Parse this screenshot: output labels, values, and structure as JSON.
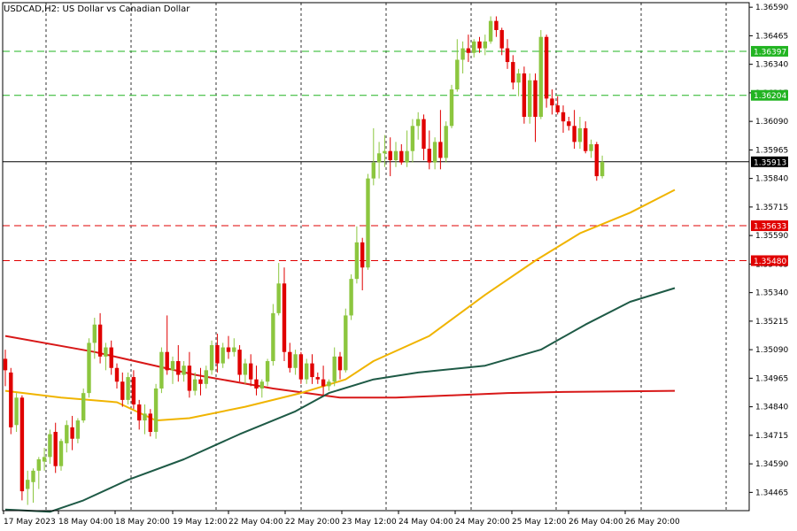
{
  "chart_data": {
    "type": "candlestick",
    "title": "USDCAD,H2:  US Dollar vs Canadian Dollar",
    "symbol": "USDCAD",
    "timeframe": "H2",
    "ylim": [
      1.34385,
      1.3661
    ],
    "y_ticks": [
      "1.36590",
      "1.36465",
      "1.36340",
      "1.36215",
      "1.36090",
      "1.35965",
      "1.35840",
      "1.35715",
      "1.35590",
      "1.35465",
      "1.35340",
      "1.35215",
      "1.35090",
      "1.34965",
      "1.34840",
      "1.34715",
      "1.34590",
      "1.34465"
    ],
    "x_ticks": [
      "17 May 2023",
      "18 May 04:00",
      "18 May 20:00",
      "19 May 12:00",
      "22 May 04:00",
      "22 May 20:00",
      "23 May 12:00",
      "24 May 04:00",
      "24 May 20:00",
      "25 May 12:00",
      "26 May 04:00",
      "26 May 20:00"
    ],
    "grid": true,
    "colors": {
      "bullish": "#8cc63f",
      "bearish": "#e00000",
      "ma_fast": "#f0b400",
      "ma_mid": "#1e5a46",
      "ma_slow": "#d81818",
      "support": "#e00000",
      "resistance": "#22b422",
      "current": "#000000"
    },
    "levels": [
      {
        "value": 1.36397,
        "label": "1.36397",
        "kind": "resistance"
      },
      {
        "value": 1.36204,
        "label": "1.36204",
        "kind": "resistance"
      },
      {
        "value": 1.35913,
        "label": "1.35913",
        "kind": "current"
      },
      {
        "value": 1.35633,
        "label": "1.35633",
        "kind": "support"
      },
      {
        "value": 1.3548,
        "label": "1.35480",
        "kind": "support"
      }
    ],
    "candles": [
      {
        "o": 1.3505,
        "h": 1.3509,
        "l": 1.3493,
        "c": 1.35
      },
      {
        "o": 1.3499,
        "h": 1.3501,
        "l": 1.3472,
        "c": 1.3475
      },
      {
        "o": 1.3476,
        "h": 1.349,
        "l": 1.3473,
        "c": 1.3488
      },
      {
        "o": 1.3488,
        "h": 1.3489,
        "l": 1.3443,
        "c": 1.3447
      },
      {
        "o": 1.3448,
        "h": 1.3456,
        "l": 1.3441,
        "c": 1.3452
      },
      {
        "o": 1.3451,
        "h": 1.3457,
        "l": 1.3442,
        "c": 1.3456
      },
      {
        "o": 1.3456,
        "h": 1.3462,
        "l": 1.3448,
        "c": 1.3461
      },
      {
        "o": 1.346,
        "h": 1.3466,
        "l": 1.3456,
        "c": 1.3462
      },
      {
        "o": 1.3462,
        "h": 1.3474,
        "l": 1.3459,
        "c": 1.3472
      },
      {
        "o": 1.3473,
        "h": 1.3477,
        "l": 1.3455,
        "c": 1.3458
      },
      {
        "o": 1.3458,
        "h": 1.347,
        "l": 1.3456,
        "c": 1.3469
      },
      {
        "o": 1.3468,
        "h": 1.3478,
        "l": 1.3464,
        "c": 1.3476
      },
      {
        "o": 1.3475,
        "h": 1.348,
        "l": 1.3465,
        "c": 1.347
      },
      {
        "o": 1.347,
        "h": 1.3479,
        "l": 1.3468,
        "c": 1.3478
      },
      {
        "o": 1.3478,
        "h": 1.3492,
        "l": 1.3477,
        "c": 1.349
      },
      {
        "o": 1.349,
        "h": 1.3514,
        "l": 1.3488,
        "c": 1.3512
      },
      {
        "o": 1.3512,
        "h": 1.3523,
        "l": 1.3505,
        "c": 1.352
      },
      {
        "o": 1.352,
        "h": 1.3525,
        "l": 1.3503,
        "c": 1.3506
      },
      {
        "o": 1.3506,
        "h": 1.3512,
        "l": 1.35,
        "c": 1.351
      },
      {
        "o": 1.351,
        "h": 1.3513,
        "l": 1.3498,
        "c": 1.3501
      },
      {
        "o": 1.3501,
        "h": 1.3503,
        "l": 1.3492,
        "c": 1.3495
      },
      {
        "o": 1.3495,
        "h": 1.3499,
        "l": 1.3484,
        "c": 1.3487
      },
      {
        "o": 1.3487,
        "h": 1.3499,
        "l": 1.3485,
        "c": 1.3497
      },
      {
        "o": 1.3497,
        "h": 1.35,
        "l": 1.3483,
        "c": 1.3485
      },
      {
        "o": 1.3485,
        "h": 1.3487,
        "l": 1.3474,
        "c": 1.3478
      },
      {
        "o": 1.3478,
        "h": 1.3485,
        "l": 1.3472,
        "c": 1.3481
      },
      {
        "o": 1.3481,
        "h": 1.3483,
        "l": 1.3471,
        "c": 1.3473
      },
      {
        "o": 1.3473,
        "h": 1.3494,
        "l": 1.347,
        "c": 1.3492
      },
      {
        "o": 1.3492,
        "h": 1.351,
        "l": 1.349,
        "c": 1.3508
      },
      {
        "o": 1.3508,
        "h": 1.3524,
        "l": 1.3498,
        "c": 1.35
      },
      {
        "o": 1.35,
        "h": 1.3506,
        "l": 1.3494,
        "c": 1.3504
      },
      {
        "o": 1.3504,
        "h": 1.3511,
        "l": 1.3495,
        "c": 1.3498
      },
      {
        "o": 1.3498,
        "h": 1.3504,
        "l": 1.3495,
        "c": 1.3502
      },
      {
        "o": 1.3502,
        "h": 1.3508,
        "l": 1.3488,
        "c": 1.3491
      },
      {
        "o": 1.3491,
        "h": 1.3499,
        "l": 1.3489,
        "c": 1.3496
      },
      {
        "o": 1.3496,
        "h": 1.3501,
        "l": 1.3489,
        "c": 1.3494
      },
      {
        "o": 1.3494,
        "h": 1.3502,
        "l": 1.3492,
        "c": 1.35
      },
      {
        "o": 1.35,
        "h": 1.3513,
        "l": 1.3498,
        "c": 1.3511
      },
      {
        "o": 1.3511,
        "h": 1.3516,
        "l": 1.3499,
        "c": 1.3503
      },
      {
        "o": 1.3503,
        "h": 1.3512,
        "l": 1.3501,
        "c": 1.351
      },
      {
        "o": 1.351,
        "h": 1.3515,
        "l": 1.3505,
        "c": 1.3508
      },
      {
        "o": 1.3508,
        "h": 1.3514,
        "l": 1.3506,
        "c": 1.351
      },
      {
        "o": 1.3509,
        "h": 1.3511,
        "l": 1.3495,
        "c": 1.3498
      },
      {
        "o": 1.3498,
        "h": 1.3505,
        "l": 1.3494,
        "c": 1.3503
      },
      {
        "o": 1.3503,
        "h": 1.3507,
        "l": 1.3493,
        "c": 1.3496
      },
      {
        "o": 1.3496,
        "h": 1.3502,
        "l": 1.3489,
        "c": 1.3492
      },
      {
        "o": 1.3492,
        "h": 1.3496,
        "l": 1.3488,
        "c": 1.3495
      },
      {
        "o": 1.3495,
        "h": 1.3505,
        "l": 1.3493,
        "c": 1.3504
      },
      {
        "o": 1.3504,
        "h": 1.3529,
        "l": 1.3502,
        "c": 1.3525
      },
      {
        "o": 1.3525,
        "h": 1.3547,
        "l": 1.3524,
        "c": 1.3538
      },
      {
        "o": 1.3538,
        "h": 1.3545,
        "l": 1.3504,
        "c": 1.3508
      },
      {
        "o": 1.3508,
        "h": 1.3512,
        "l": 1.3499,
        "c": 1.3501
      },
      {
        "o": 1.3501,
        "h": 1.3509,
        "l": 1.3498,
        "c": 1.3507
      },
      {
        "o": 1.3507,
        "h": 1.3508,
        "l": 1.3494,
        "c": 1.3496
      },
      {
        "o": 1.3496,
        "h": 1.3505,
        "l": 1.3494,
        "c": 1.3503
      },
      {
        "o": 1.3503,
        "h": 1.3507,
        "l": 1.3494,
        "c": 1.3497
      },
      {
        "o": 1.3497,
        "h": 1.3499,
        "l": 1.3494,
        "c": 1.3496
      },
      {
        "o": 1.3496,
        "h": 1.3502,
        "l": 1.3489,
        "c": 1.3493
      },
      {
        "o": 1.3493,
        "h": 1.3496,
        "l": 1.3491,
        "c": 1.3495
      },
      {
        "o": 1.3495,
        "h": 1.351,
        "l": 1.3493,
        "c": 1.3506
      },
      {
        "o": 1.3506,
        "h": 1.3508,
        "l": 1.3496,
        "c": 1.35
      },
      {
        "o": 1.35,
        "h": 1.3527,
        "l": 1.3499,
        "c": 1.3524
      },
      {
        "o": 1.3524,
        "h": 1.3542,
        "l": 1.3522,
        "c": 1.354
      },
      {
        "o": 1.354,
        "h": 1.3563,
        "l": 1.3538,
        "c": 1.3556
      },
      {
        "o": 1.3556,
        "h": 1.3558,
        "l": 1.3535,
        "c": 1.3545
      },
      {
        "o": 1.3545,
        "h": 1.3586,
        "l": 1.3544,
        "c": 1.3584
      },
      {
        "o": 1.3584,
        "h": 1.3606,
        "l": 1.3581,
        "c": 1.3591
      },
      {
        "o": 1.3591,
        "h": 1.36,
        "l": 1.3584,
        "c": 1.3595
      },
      {
        "o": 1.3595,
        "h": 1.3603,
        "l": 1.3589,
        "c": 1.3596
      },
      {
        "o": 1.3596,
        "h": 1.3602,
        "l": 1.3585,
        "c": 1.3592
      },
      {
        "o": 1.3592,
        "h": 1.36,
        "l": 1.3589,
        "c": 1.3596
      },
      {
        "o": 1.3596,
        "h": 1.3599,
        "l": 1.359,
        "c": 1.3591
      },
      {
        "o": 1.3591,
        "h": 1.3605,
        "l": 1.3589,
        "c": 1.3596
      },
      {
        "o": 1.3596,
        "h": 1.361,
        "l": 1.3591,
        "c": 1.3607
      },
      {
        "o": 1.3607,
        "h": 1.3613,
        "l": 1.3601,
        "c": 1.361
      },
      {
        "o": 1.361,
        "h": 1.3612,
        "l": 1.3592,
        "c": 1.3597
      },
      {
        "o": 1.3597,
        "h": 1.3605,
        "l": 1.3588,
        "c": 1.3591
      },
      {
        "o": 1.3591,
        "h": 1.3602,
        "l": 1.3588,
        "c": 1.36
      },
      {
        "o": 1.36,
        "h": 1.3614,
        "l": 1.3588,
        "c": 1.3593
      },
      {
        "o": 1.3593,
        "h": 1.3609,
        "l": 1.3591,
        "c": 1.3607
      },
      {
        "o": 1.3607,
        "h": 1.3625,
        "l": 1.3606,
        "c": 1.3623
      },
      {
        "o": 1.3623,
        "h": 1.3645,
        "l": 1.3622,
        "c": 1.3636
      },
      {
        "o": 1.3636,
        "h": 1.3644,
        "l": 1.363,
        "c": 1.3641
      },
      {
        "o": 1.3641,
        "h": 1.3647,
        "l": 1.3635,
        "c": 1.3639
      },
      {
        "o": 1.3639,
        "h": 1.3645,
        "l": 1.3637,
        "c": 1.3644
      },
      {
        "o": 1.3644,
        "h": 1.3646,
        "l": 1.3639,
        "c": 1.3641
      },
      {
        "o": 1.3641,
        "h": 1.3647,
        "l": 1.3638,
        "c": 1.3644
      },
      {
        "o": 1.3644,
        "h": 1.3655,
        "l": 1.3643,
        "c": 1.3653
      },
      {
        "o": 1.3653,
        "h": 1.3655,
        "l": 1.3646,
        "c": 1.3649
      },
      {
        "o": 1.3649,
        "h": 1.365,
        "l": 1.3638,
        "c": 1.3641
      },
      {
        "o": 1.3641,
        "h": 1.3645,
        "l": 1.3632,
        "c": 1.3635
      },
      {
        "o": 1.3635,
        "h": 1.3638,
        "l": 1.3623,
        "c": 1.3626
      },
      {
        "o": 1.3626,
        "h": 1.3632,
        "l": 1.362,
        "c": 1.363
      },
      {
        "o": 1.363,
        "h": 1.3633,
        "l": 1.3608,
        "c": 1.3611
      },
      {
        "o": 1.3611,
        "h": 1.363,
        "l": 1.3608,
        "c": 1.3627
      },
      {
        "o": 1.3627,
        "h": 1.363,
        "l": 1.36,
        "c": 1.3611
      },
      {
        "o": 1.3611,
        "h": 1.3649,
        "l": 1.361,
        "c": 1.3646
      },
      {
        "o": 1.3646,
        "h": 1.3647,
        "l": 1.3615,
        "c": 1.3619
      },
      {
        "o": 1.3619,
        "h": 1.3623,
        "l": 1.3612,
        "c": 1.3616
      },
      {
        "o": 1.3616,
        "h": 1.362,
        "l": 1.3612,
        "c": 1.3613
      },
      {
        "o": 1.3613,
        "h": 1.3616,
        "l": 1.3604,
        "c": 1.3609
      },
      {
        "o": 1.3609,
        "h": 1.3611,
        "l": 1.3605,
        "c": 1.3607
      },
      {
        "o": 1.3607,
        "h": 1.3614,
        "l": 1.3597,
        "c": 1.36
      },
      {
        "o": 1.36,
        "h": 1.3611,
        "l": 1.3597,
        "c": 1.3606
      },
      {
        "o": 1.3606,
        "h": 1.3609,
        "l": 1.3595,
        "c": 1.3596
      },
      {
        "o": 1.3596,
        "h": 1.3601,
        "l": 1.3593,
        "c": 1.3599
      },
      {
        "o": 1.3599,
        "h": 1.36,
        "l": 1.3583,
        "c": 1.3585
      },
      {
        "o": 1.3585,
        "h": 1.3594,
        "l": 1.3584,
        "c": 1.35913
      }
    ],
    "ma_fast": [
      [
        0,
        1.3491
      ],
      [
        10,
        1.3488
      ],
      [
        20,
        1.3486
      ],
      [
        27,
        1.3478
      ],
      [
        33,
        1.3479
      ],
      [
        43,
        1.3484
      ],
      [
        53,
        1.349
      ],
      [
        61,
        1.3496
      ],
      [
        66,
        1.3504
      ],
      [
        76,
        1.3515
      ],
      [
        86,
        1.3533
      ],
      [
        95,
        1.3548
      ],
      [
        103,
        1.356
      ],
      [
        112,
        1.3569
      ],
      [
        120,
        1.3579
      ]
    ],
    "ma_mid": [
      [
        0,
        1.3439
      ],
      [
        8,
        1.3438
      ],
      [
        14,
        1.3443
      ],
      [
        22,
        1.3452
      ],
      [
        32,
        1.3461
      ],
      [
        42,
        1.3472
      ],
      [
        52,
        1.3482
      ],
      [
        58,
        1.349
      ],
      [
        66,
        1.3496
      ],
      [
        74,
        1.3499
      ],
      [
        86,
        1.3502
      ],
      [
        96,
        1.3509
      ],
      [
        104,
        1.352
      ],
      [
        112,
        1.353
      ],
      [
        120,
        1.3536
      ]
    ],
    "ma_slow": [
      [
        0,
        1.3515
      ],
      [
        16,
        1.3508
      ],
      [
        34,
        1.3498
      ],
      [
        48,
        1.3492
      ],
      [
        60,
        1.3488
      ],
      [
        70,
        1.3488
      ],
      [
        80,
        1.3489
      ],
      [
        90,
        1.349
      ],
      [
        100,
        1.34905
      ],
      [
        120,
        1.3491
      ]
    ]
  }
}
